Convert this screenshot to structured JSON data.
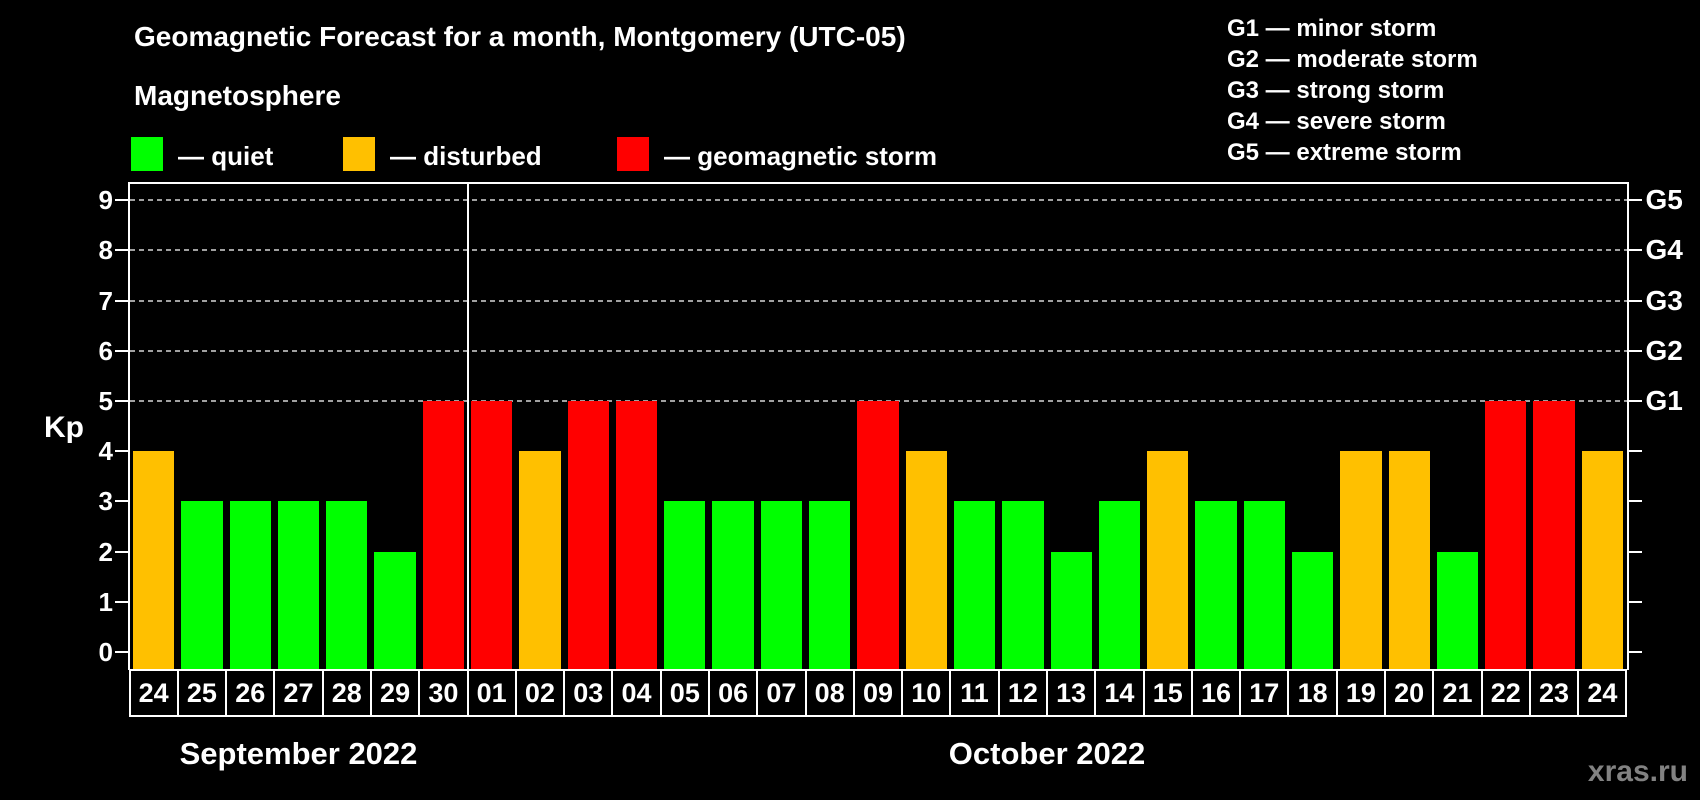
{
  "title": "Geomagnetic Forecast for a month, Montgomery (UTC-05)",
  "subtitle": "Magnetosphere",
  "legend": {
    "items": [
      {
        "label": "— quiet",
        "color": "#00ff00"
      },
      {
        "label": "— disturbed",
        "color": "#ffc000"
      },
      {
        "label": "— geomagnetic storm",
        "color": "#ff0000"
      }
    ]
  },
  "storm_legend": [
    "G1 — minor storm",
    "G2 — moderate storm",
    "G3 — strong storm",
    "G4 — severe storm",
    "G5 — extreme storm"
  ],
  "watermark": "xras.ru",
  "chart_data": {
    "type": "bar",
    "title": "Geomagnetic Forecast for a month, Montgomery (UTC-05)",
    "ylabel": "Kp",
    "ylim": [
      0,
      9
    ],
    "yticks": [
      0,
      1,
      2,
      3,
      4,
      5,
      6,
      7,
      8,
      9
    ],
    "gridlines_at_kp": [
      5,
      6,
      7,
      8,
      9
    ],
    "grid": true,
    "legend_position": "top-right",
    "right_axis": [
      {
        "label": "G1",
        "kp": 5
      },
      {
        "label": "G2",
        "kp": 6
      },
      {
        "label": "G3",
        "kp": 7
      },
      {
        "label": "G4",
        "kp": 8
      },
      {
        "label": "G5",
        "kp": 9
      }
    ],
    "status_colors": {
      "quiet": "#00ff00",
      "disturbed": "#ffc000",
      "storm": "#ff0000"
    },
    "month_groups": [
      {
        "label": "September 2022",
        "days": 7
      },
      {
        "label": "October 2022",
        "days": 24
      }
    ],
    "categories": [
      "24",
      "25",
      "26",
      "27",
      "28",
      "29",
      "30",
      "01",
      "02",
      "03",
      "04",
      "05",
      "06",
      "07",
      "08",
      "09",
      "10",
      "11",
      "12",
      "13",
      "14",
      "15",
      "16",
      "17",
      "18",
      "19",
      "20",
      "21",
      "22",
      "23",
      "24"
    ],
    "values": [
      4,
      3,
      3,
      3,
      3,
      2,
      5,
      5,
      4,
      5,
      5,
      3,
      3,
      3,
      3,
      5,
      4,
      3,
      3,
      2,
      3,
      4,
      3,
      3,
      2,
      4,
      4,
      2,
      5,
      5,
      4
    ],
    "bars": [
      {
        "day": "24",
        "kp": 4,
        "status": "disturbed"
      },
      {
        "day": "25",
        "kp": 3,
        "status": "quiet"
      },
      {
        "day": "26",
        "kp": 3,
        "status": "quiet"
      },
      {
        "day": "27",
        "kp": 3,
        "status": "quiet"
      },
      {
        "day": "28",
        "kp": 3,
        "status": "quiet"
      },
      {
        "day": "29",
        "kp": 2,
        "status": "quiet"
      },
      {
        "day": "30",
        "kp": 5,
        "status": "storm"
      },
      {
        "day": "01",
        "kp": 5,
        "status": "storm"
      },
      {
        "day": "02",
        "kp": 4,
        "status": "disturbed"
      },
      {
        "day": "03",
        "kp": 5,
        "status": "storm"
      },
      {
        "day": "04",
        "kp": 5,
        "status": "storm"
      },
      {
        "day": "05",
        "kp": 3,
        "status": "quiet"
      },
      {
        "day": "06",
        "kp": 3,
        "status": "quiet"
      },
      {
        "day": "07",
        "kp": 3,
        "status": "quiet"
      },
      {
        "day": "08",
        "kp": 3,
        "status": "quiet"
      },
      {
        "day": "09",
        "kp": 5,
        "status": "storm"
      },
      {
        "day": "10",
        "kp": 4,
        "status": "disturbed"
      },
      {
        "day": "11",
        "kp": 3,
        "status": "quiet"
      },
      {
        "day": "12",
        "kp": 3,
        "status": "quiet"
      },
      {
        "day": "13",
        "kp": 2,
        "status": "quiet"
      },
      {
        "day": "14",
        "kp": 3,
        "status": "quiet"
      },
      {
        "day": "15",
        "kp": 4,
        "status": "disturbed"
      },
      {
        "day": "16",
        "kp": 3,
        "status": "quiet"
      },
      {
        "day": "17",
        "kp": 3,
        "status": "quiet"
      },
      {
        "day": "18",
        "kp": 2,
        "status": "quiet"
      },
      {
        "day": "19",
        "kp": 4,
        "status": "disturbed"
      },
      {
        "day": "20",
        "kp": 4,
        "status": "disturbed"
      },
      {
        "day": "21",
        "kp": 2,
        "status": "quiet"
      },
      {
        "day": "22",
        "kp": 5,
        "status": "storm"
      },
      {
        "day": "23",
        "kp": 5,
        "status": "storm"
      },
      {
        "day": "24",
        "kp": 4,
        "status": "disturbed"
      }
    ]
  }
}
